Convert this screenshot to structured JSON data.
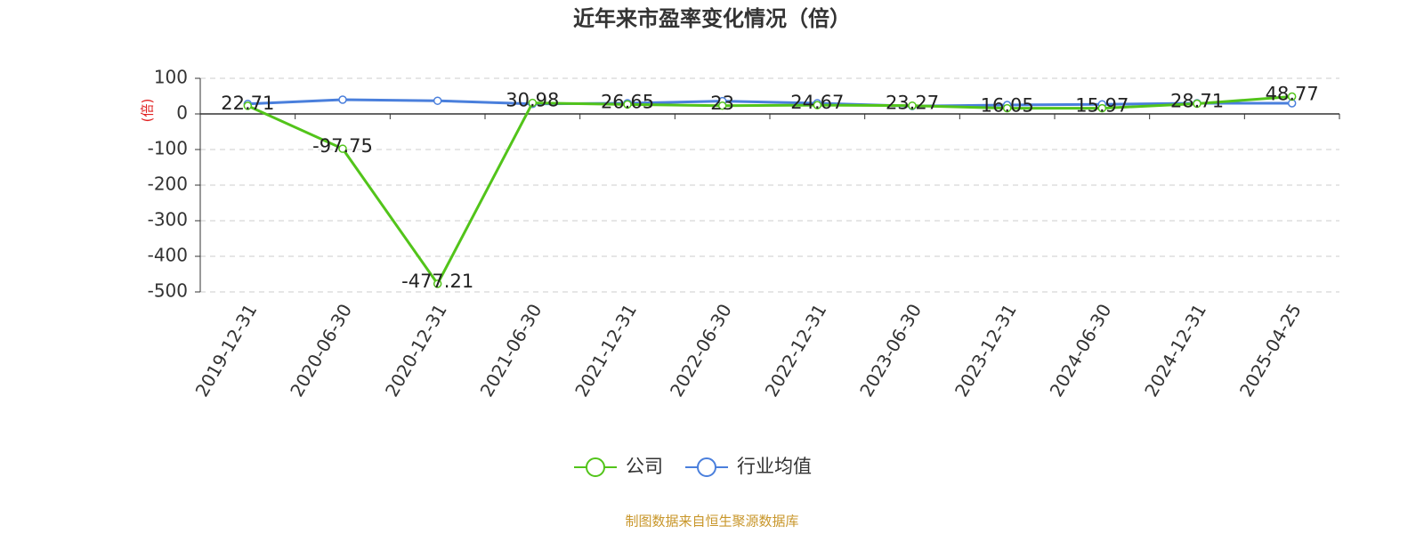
{
  "chart_data": {
    "type": "line",
    "title": "近年来市盈率变化情况（倍）",
    "y_axis_label": "(倍)",
    "categories": [
      "2019-12-31",
      "2020-06-30",
      "2020-12-31",
      "2021-06-30",
      "2021-12-31",
      "2022-06-30",
      "2022-12-31",
      "2023-06-30",
      "2023-12-31",
      "2024-06-30",
      "2024-12-31",
      "2025-04-25"
    ],
    "series": [
      {
        "name": "公司",
        "color": "#52c41a",
        "values": [
          22.71,
          -97.75,
          -477.21,
          30.98,
          26.65,
          23,
          24.67,
          23.27,
          16.05,
          15.97,
          28.71,
          48.77
        ]
      },
      {
        "name": "行业均值",
        "color": "#4a7fdc",
        "values": [
          28,
          40,
          37,
          28,
          30,
          36,
          30,
          22,
          25,
          27,
          30,
          30
        ]
      }
    ],
    "ylim": [
      -500,
      100
    ],
    "yticks": [
      -500,
      -400,
      -300,
      -200,
      -100,
      0,
      100
    ],
    "grid": true,
    "legend": "bottom",
    "source": "制图数据来自恒生聚源数据库"
  }
}
